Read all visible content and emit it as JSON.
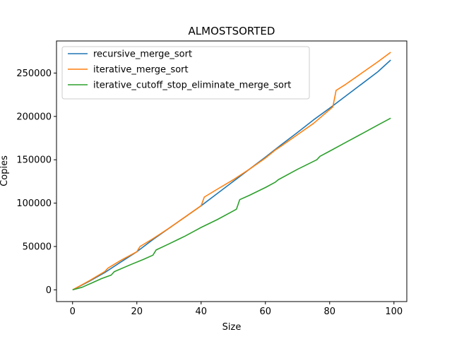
{
  "chart_data": {
    "type": "line",
    "title": "ALMOSTSORTED",
    "xlabel": "Size",
    "ylabel": "Copies",
    "xlim": [
      -5,
      104
    ],
    "ylim": [
      -13500,
      287000
    ],
    "xticks": [
      0,
      20,
      40,
      60,
      80,
      100
    ],
    "yticks": [
      0,
      50000,
      100000,
      150000,
      200000,
      250000
    ],
    "grid": false,
    "legend_position": "top-left",
    "series": [
      {
        "name": "recursive_merge_sort",
        "color": "#1f77b4",
        "x": [
          0,
          5,
          10,
          15,
          20,
          25,
          30,
          35,
          40,
          45,
          50,
          55,
          60,
          65,
          70,
          75,
          80,
          85,
          90,
          95,
          99
        ],
        "y": [
          0,
          9500,
          20000,
          32000,
          44000,
          58000,
          71000,
          84000,
          97000,
          111000,
          125000,
          139000,
          153000,
          167500,
          181500,
          196000,
          209500,
          223500,
          237500,
          251500,
          265000
        ]
      },
      {
        "name": "iterative_merge_sort",
        "color": "#ff7f0e",
        "x": [
          0,
          5,
          10,
          11,
          15,
          20,
          21,
          25,
          30,
          35,
          40,
          41,
          45,
          50,
          55,
          60,
          63,
          65,
          70,
          75,
          81,
          82,
          85,
          90,
          95,
          99
        ],
        "y": [
          0,
          10000,
          21000,
          25000,
          34000,
          44000,
          50000,
          59000,
          71000,
          84000,
          97000,
          107000,
          116000,
          127000,
          139000,
          152000,
          161000,
          166000,
          179000,
          192000,
          211000,
          230000,
          237000,
          250000,
          263000,
          274000
        ]
      },
      {
        "name": "iterative_cutoff_stop_eliminate_merge_sort",
        "color": "#2ca02c",
        "x": [
          0,
          3,
          6,
          9,
          12,
          13,
          18,
          22,
          25,
          26,
          30,
          35,
          38,
          40,
          45,
          50,
          51,
          52,
          55,
          60,
          63,
          64,
          70,
          76,
          77,
          80,
          85,
          90,
          95,
          99
        ],
        "y": [
          0,
          3000,
          8000,
          13000,
          17000,
          21000,
          29000,
          35000,
          40000,
          46000,
          53000,
          62000,
          68000,
          72000,
          81000,
          91000,
          93000,
          104000,
          109000,
          118000,
          124000,
          127000,
          139000,
          150000,
          154000,
          160000,
          170000,
          180000,
          190000,
          198000
        ]
      }
    ]
  }
}
